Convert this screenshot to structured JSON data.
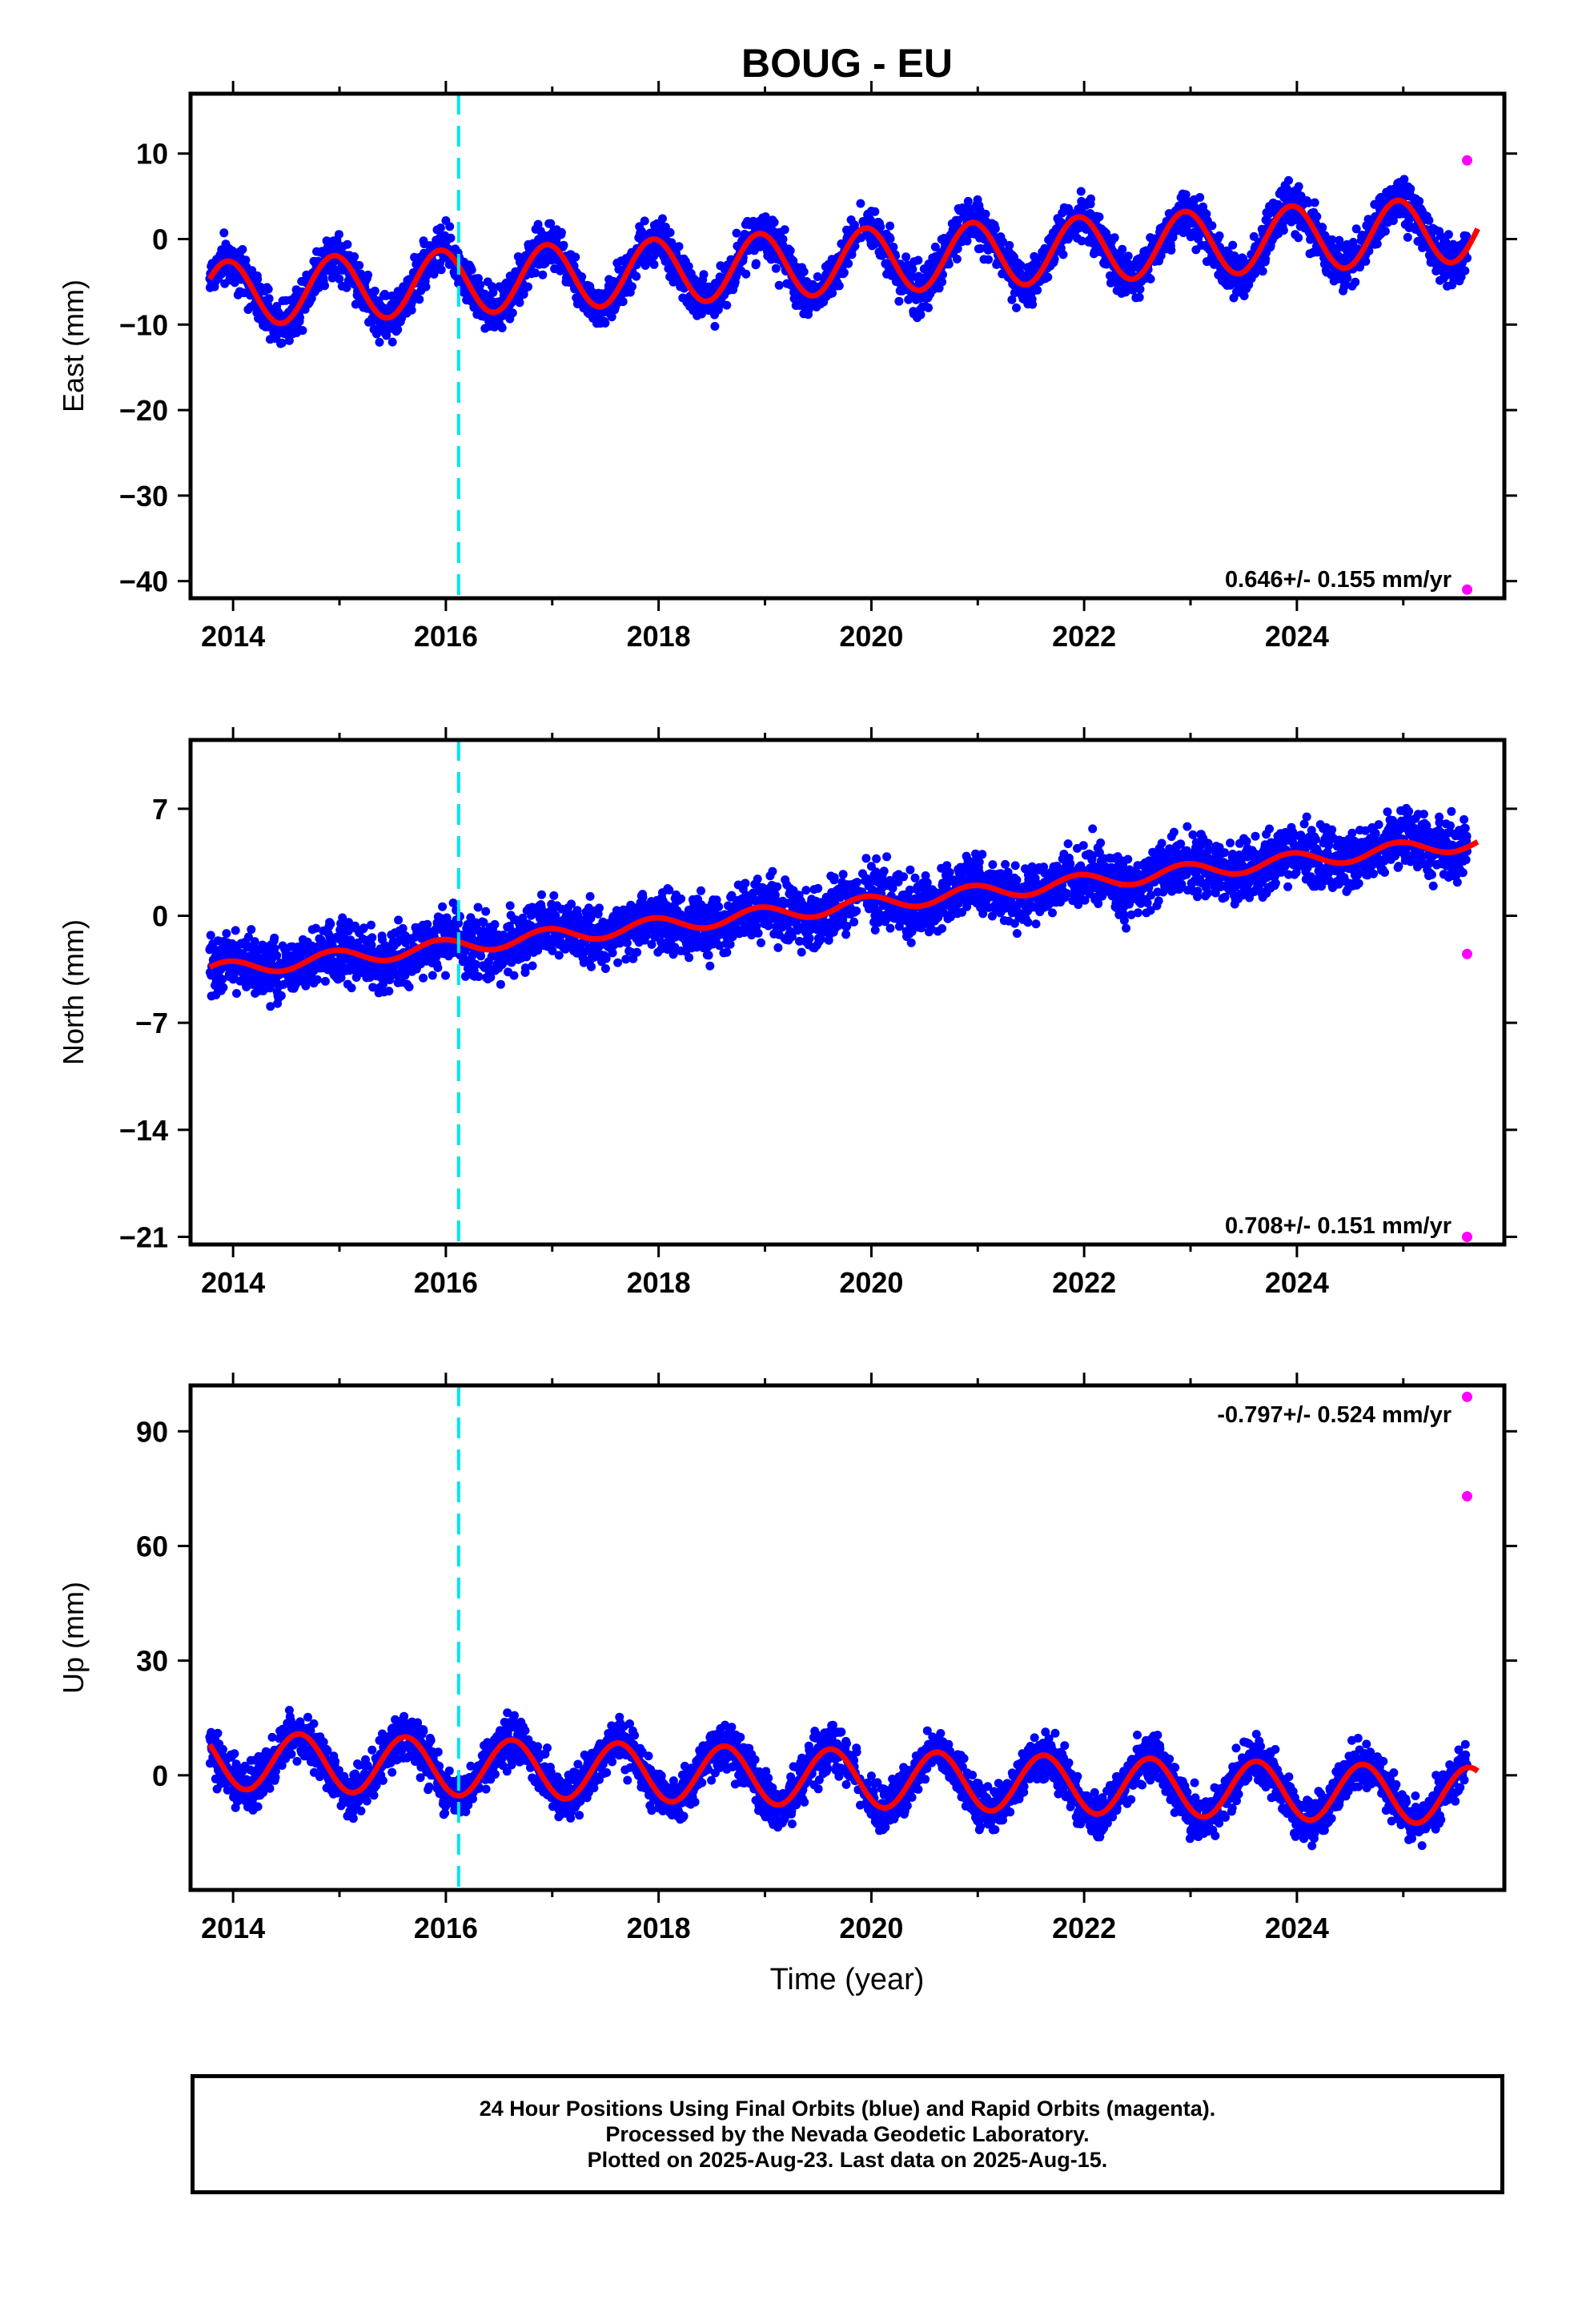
{
  "figure": {
    "title": "BOUG - EU",
    "xlabel": "Time (year)"
  },
  "colors": {
    "final_orbits": "#0000ff",
    "rapid_orbits": "#ff00ff",
    "model_fit": "#ff0000",
    "event_line": "#00e5ee"
  },
  "footer": {
    "line1": "24 Hour Positions Using Final Orbits (blue) and Rapid Orbits (magenta).",
    "line2": "Processed by the Nevada Geodetic Laboratory.",
    "line3": "Plotted on 2025-Aug-23. Last data on 2025-Aug-15."
  },
  "chart_data": [
    {
      "type": "scatter",
      "ylabel": "East (mm)",
      "rate_label": "0.646+/- 0.155 mm/yr",
      "rate_position": "bottom-right",
      "xlim": [
        2013.6,
        2025.95
      ],
      "ylim": [
        -42,
        17
      ],
      "xticks": [
        2014,
        2016,
        2018,
        2020,
        2022,
        2024
      ],
      "yticks": [
        10,
        0,
        -10,
        -20,
        -30,
        -40
      ],
      "event_line_x": 2016.12,
      "model": {
        "start": 2013.78,
        "end": 2025.6,
        "offset": -6.5,
        "rate": 0.646,
        "annual_amp": 3.8,
        "annual_peak": 2013.95,
        "noise": 1.8
      },
      "rapid_points": [
        [
          2025.6,
          9.2
        ],
        [
          2025.6,
          -41
        ]
      ]
    },
    {
      "type": "scatter",
      "ylabel": "North (mm)",
      "rate_label": "0.708+/- 0.151 mm/yr",
      "rate_position": "bottom-right",
      "xlim": [
        2013.6,
        2025.95
      ],
      "ylim": [
        -21.5,
        11.5
      ],
      "xticks": [
        2014,
        2016,
        2018,
        2020,
        2022,
        2024
      ],
      "yticks": [
        7,
        0,
        -7,
        -14,
        -21
      ],
      "event_line_x": 2016.12,
      "model": {
        "start": 2013.78,
        "end": 2025.6,
        "offset": -3.6,
        "rate": 0.708,
        "annual_amp": 0.5,
        "annual_peak": 2013.95,
        "noise": 1.3
      },
      "rapid_points": [
        [
          2025.6,
          -2.5
        ],
        [
          2025.6,
          -21
        ]
      ]
    },
    {
      "type": "scatter",
      "ylabel": "Up (mm)",
      "rate_label": "-0.797+/- 0.524 mm/yr",
      "rate_position": "top-right",
      "xlim": [
        2013.6,
        2025.95
      ],
      "ylim": [
        -30,
        102
      ],
      "xticks": [
        2014,
        2016,
        2018,
        2020,
        2022,
        2024
      ],
      "yticks": [
        90,
        60,
        30,
        0
      ],
      "event_line_x": 2016.12,
      "model": {
        "start": 2013.78,
        "end": 2025.6,
        "offset": 4.0,
        "rate": -0.797,
        "annual_amp": 7.5,
        "annual_peak": 2013.62,
        "noise": 4.0
      },
      "rapid_points": [
        [
          2025.6,
          99
        ],
        [
          2025.6,
          73
        ]
      ]
    }
  ]
}
